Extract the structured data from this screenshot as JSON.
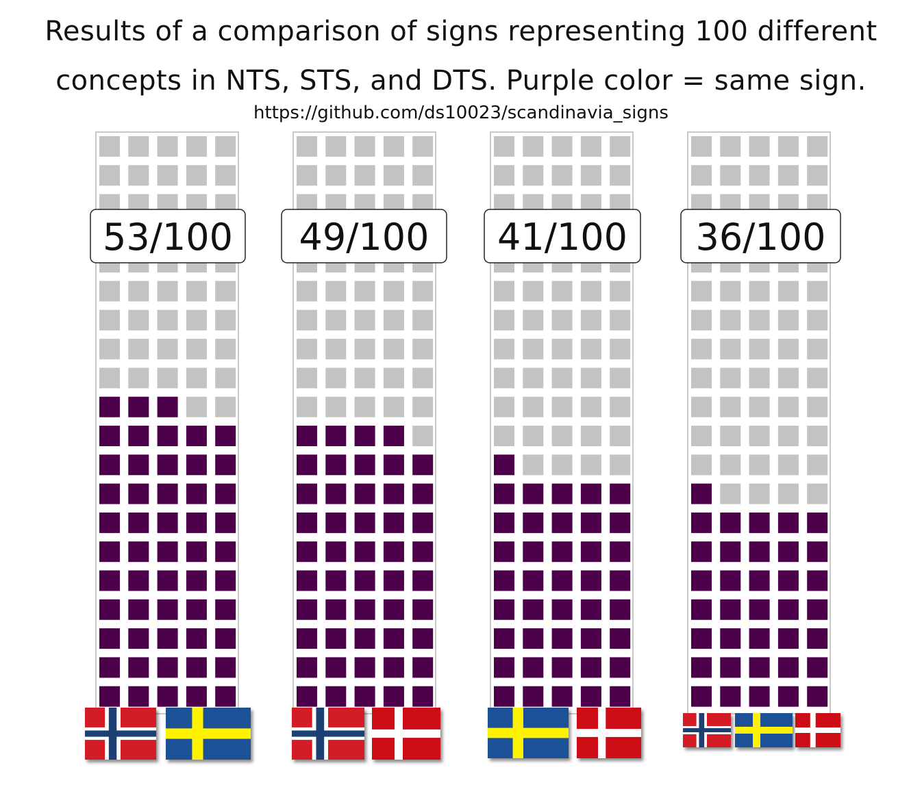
{
  "title_line1": "Results of a comparison of signs representing 100 different",
  "title_line2": "concepts in NTS, STS, and DTS. Purple color = same sign.",
  "source_url": "https://github.com/ds10023/scandinavia_signs",
  "colors": {
    "same": "#4b0049",
    "different": "#c3c3c3",
    "frame": "#c8c8c8"
  },
  "chart_data": {
    "type": "waffle",
    "total": 100,
    "grid": {
      "columns": 5,
      "rows": 20
    },
    "panels": [
      {
        "label": "53/100",
        "same": 53,
        "flags": [
          "norway-flag",
          "sweden-flag"
        ]
      },
      {
        "label": "49/100",
        "same": 49,
        "flags": [
          "norway-flag",
          "denmark-flag"
        ]
      },
      {
        "label": "41/100",
        "same": 41,
        "flags": [
          "sweden-flag",
          "denmark-flag"
        ]
      },
      {
        "label": "36/100",
        "same": 36,
        "flags": [
          "norway-flag",
          "sweden-flag",
          "denmark-flag"
        ]
      }
    ]
  }
}
